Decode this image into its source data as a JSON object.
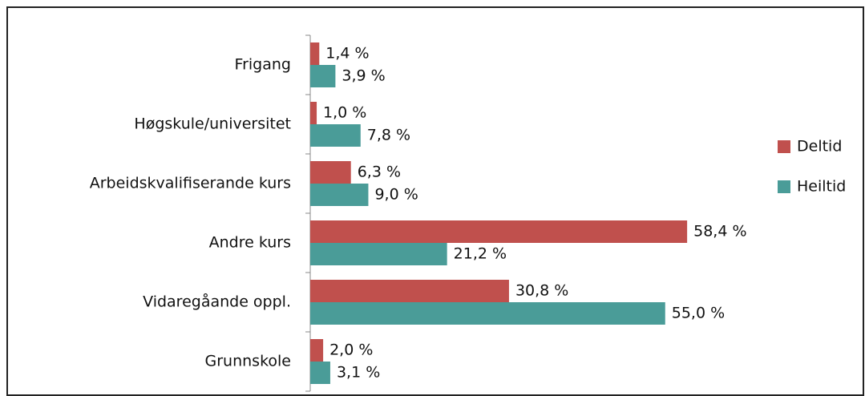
{
  "chart_data": {
    "type": "bar",
    "orientation": "horizontal",
    "categories": [
      "Frigang",
      "Høgskule/universitet",
      "Arbeidskvalifiserande kurs",
      "Andre kurs",
      "Vidaregåande oppl.",
      "Grunnskole"
    ],
    "series": [
      {
        "name": "Deltid",
        "color": "#c0504d",
        "values": [
          1.4,
          1.0,
          6.3,
          58.4,
          30.8,
          2.0
        ],
        "value_labels": [
          "1,4 %",
          "1,0 %",
          "6,3 %",
          "58,4 %",
          "30,8 %",
          "2,0 %"
        ]
      },
      {
        "name": "Heiltid",
        "color": "#4a9c98",
        "values": [
          3.9,
          7.8,
          9.0,
          21.2,
          55.0,
          3.1
        ],
        "value_labels": [
          "3,9 %",
          "7,8 %",
          "9,0 %",
          "21,2 %",
          "55,0 %",
          "3,1 %"
        ]
      }
    ],
    "legend": "right"
  }
}
